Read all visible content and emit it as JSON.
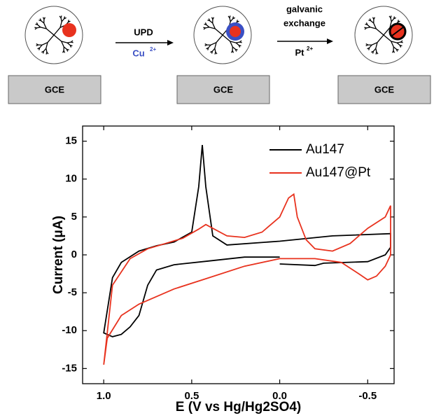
{
  "scheme": {
    "electrode": [
      "GCE",
      "GCE",
      "GCE"
    ],
    "step1": {
      "label": "UPD",
      "reagent": "Cu",
      "charge": "2+"
    },
    "step2": {
      "label": [
        "galvanic",
        "exchange"
      ],
      "reagent": "Pt",
      "charge": "2+"
    }
  },
  "chart_data": {
    "type": "line",
    "xlabel": "E (V vs Hg/Hg2SO4)",
    "ylabel": "Current (μA)",
    "xlim": [
      1.12,
      -0.65
    ],
    "ylim": [
      -17,
      17
    ],
    "xticks": [
      {
        "value": 1.0,
        "label": "1.0"
      },
      0.5,
      {
        "value": 0.0,
        "label": "0.0"
      },
      -0.5
    ],
    "yticks": [
      -15,
      -10,
      -5,
      0,
      5,
      10,
      15
    ],
    "legend": "upper right",
    "series": [
      {
        "name": "Au147",
        "color": "#000000",
        "x": [
          0.0,
          -0.2,
          -0.25,
          -0.5,
          -0.6,
          -0.63,
          -0.63,
          -0.3,
          0.0,
          0.3,
          0.38,
          0.42,
          0.44,
          0.46,
          0.5,
          0.6,
          0.7,
          0.8,
          0.9,
          0.95,
          1.0,
          0.95,
          0.9,
          0.85,
          0.8,
          0.75,
          0.7,
          0.6,
          0.4,
          0.2,
          0.0
        ],
        "values": [
          -1.2,
          -1.4,
          -1.1,
          -0.9,
          0,
          1,
          2.8,
          2.5,
          1.8,
          1.3,
          2.5,
          9,
          14.5,
          9,
          3,
          1.7,
          1.2,
          0.5,
          -1,
          -3,
          -10.3,
          -10.8,
          -10.5,
          -9.5,
          -8,
          -4,
          -2,
          -1.3,
          -0.8,
          -0.3,
          -0.3
        ]
      },
      {
        "name": "Au147@Pt",
        "color": "#e8321e",
        "x": [
          -0.63,
          -0.6,
          -0.5,
          -0.4,
          -0.3,
          -0.2,
          -0.15,
          -0.1,
          -0.08,
          -0.05,
          0.0,
          0.1,
          0.2,
          0.3,
          0.38,
          0.42,
          0.46,
          0.55,
          0.65,
          0.75,
          0.85,
          0.95,
          1.0,
          0.98,
          0.9,
          0.8,
          0.6,
          0.4,
          0.2,
          0.0,
          -0.2,
          -0.35,
          -0.45,
          -0.5,
          -0.55,
          -0.6,
          -0.63,
          -0.63
        ],
        "values": [
          6.5,
          5,
          3.5,
          1.5,
          0.5,
          0.8,
          2,
          5,
          8,
          7.5,
          5,
          3,
          2.3,
          2.5,
          3.5,
          4,
          3.4,
          2.2,
          1.5,
          0.8,
          -0.5,
          -4,
          -14.5,
          -11,
          -8,
          -6.5,
          -4.5,
          -3,
          -1.5,
          -0.5,
          -0.5,
          -1,
          -2.5,
          -3.3,
          -2.8,
          -1.5,
          0,
          6.5
        ]
      }
    ]
  }
}
